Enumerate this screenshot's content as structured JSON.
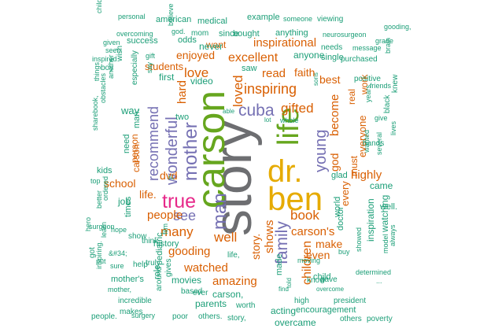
{
  "colors": {
    "gray": "#6d6e71",
    "yellow": "#e6ab02",
    "green": "#66a61e",
    "pink": "#e7298a",
    "purple": "#7570b3",
    "orange": "#d95f02",
    "teal": "#1b9e77"
  },
  "words": [
    {
      "text": "story",
      "color": "gray"
    },
    {
      "text": "dr.",
      "color": "yellow"
    },
    {
      "text": "ben",
      "color": "yellow"
    },
    {
      "text": "carson",
      "color": "green"
    },
    {
      "text": "life",
      "color": "green"
    },
    {
      "text": "true",
      "color": "pink"
    },
    {
      "text": "man",
      "color": "purple"
    },
    {
      "text": "mother",
      "color": "purple"
    },
    {
      "text": "wonderful",
      "color": "purple"
    },
    {
      "text": "cuba",
      "color": "purple"
    },
    {
      "text": "see",
      "color": "purple"
    },
    {
      "text": "young",
      "color": "purple"
    },
    {
      "text": "recommend",
      "color": "purple"
    },
    {
      "text": "family",
      "color": "purple"
    },
    {
      "text": "inspiring",
      "color": "orange"
    },
    {
      "text": "love",
      "color": "orange"
    },
    {
      "text": "loved",
      "color": "orange"
    },
    {
      "text": "gifted",
      "color": "orange"
    },
    {
      "text": "read",
      "color": "orange"
    },
    {
      "text": "faith",
      "color": "orange"
    },
    {
      "text": "excellent",
      "color": "orange"
    },
    {
      "text": "inspirational",
      "color": "orange"
    },
    {
      "text": "enjoyed",
      "color": "orange"
    },
    {
      "text": "hard",
      "color": "orange"
    },
    {
      "text": "god",
      "color": "orange"
    },
    {
      "text": "become",
      "color": "orange"
    },
    {
      "text": "best",
      "color": "orange"
    },
    {
      "text": "highly",
      "color": "orange"
    },
    {
      "text": "book",
      "color": "orange"
    },
    {
      "text": "carson's",
      "color": "orange"
    },
    {
      "text": "make",
      "color": "orange"
    },
    {
      "text": "even",
      "color": "orange"
    },
    {
      "text": "children",
      "color": "orange"
    },
    {
      "text": "shows",
      "color": "orange"
    },
    {
      "text": "story.",
      "color": "orange"
    },
    {
      "text": "well",
      "color": "orange"
    },
    {
      "text": "many",
      "color": "orange"
    },
    {
      "text": "people",
      "color": "orange"
    },
    {
      "text": "gooding",
      "color": "orange"
    },
    {
      "text": "watched",
      "color": "orange"
    },
    {
      "text": "amazing",
      "color": "orange"
    },
    {
      "text": "school",
      "color": "orange"
    },
    {
      "text": "life.",
      "color": "orange"
    },
    {
      "text": "students",
      "color": "orange"
    },
    {
      "text": "want",
      "color": "orange"
    },
    {
      "text": "every",
      "color": "orange"
    },
    {
      "text": "everyone",
      "color": "orange"
    },
    {
      "text": "must",
      "color": "orange"
    },
    {
      "text": "real",
      "color": "orange"
    },
    {
      "text": "work",
      "color": "orange"
    },
    {
      "text": "dvd",
      "color": "orange"
    },
    {
      "text": "carson.",
      "color": "orange"
    },
    {
      "text": "person",
      "color": "orange"
    },
    {
      "text": "way",
      "color": "teal"
    },
    {
      "text": "first",
      "color": "teal"
    },
    {
      "text": "video",
      "color": "teal"
    },
    {
      "text": "anyone",
      "color": "teal"
    },
    {
      "text": "saw",
      "color": "teal"
    },
    {
      "text": "two",
      "color": "teal"
    },
    {
      "text": "need",
      "color": "teal"
    },
    {
      "text": "man.",
      "color": "teal"
    },
    {
      "text": "job",
      "color": "teal"
    },
    {
      "text": "kids",
      "color": "teal"
    },
    {
      "text": "times",
      "color": "teal"
    },
    {
      "text": "world",
      "color": "teal"
    },
    {
      "text": "doctor",
      "color": "teal"
    },
    {
      "text": "inspiration",
      "color": "teal"
    },
    {
      "text": "watching",
      "color": "teal"
    },
    {
      "text": "came",
      "color": "teal"
    },
    {
      "text": "glad",
      "color": "teal"
    },
    {
      "text": "well.",
      "color": "teal"
    },
    {
      "text": "made",
      "color": "teal"
    },
    {
      "text": "child",
      "color": "teal"
    },
    {
      "text": "high",
      "color": "teal"
    },
    {
      "text": "president",
      "color": "teal"
    },
    {
      "text": "know",
      "color": "teal"
    },
    {
      "text": "acting",
      "color": "teal"
    },
    {
      "text": "overcame",
      "color": "teal"
    },
    {
      "text": "worth",
      "color": "teal"
    },
    {
      "text": "carson,",
      "color": "teal"
    },
    {
      "text": "parents",
      "color": "teal"
    },
    {
      "text": "movies",
      "color": "teal"
    },
    {
      "text": "ever",
      "color": "teal"
    },
    {
      "text": "role",
      "color": "teal"
    },
    {
      "text": "mother's",
      "color": "teal"
    },
    {
      "text": "sure",
      "color": "teal"
    },
    {
      "text": "incredible",
      "color": "teal"
    },
    {
      "text": "makes",
      "color": "teal"
    },
    {
      "text": "mother,",
      "color": "teal"
    },
    {
      "text": "inspiring.",
      "color": "teal"
    },
    {
      "text": "people.",
      "color": "teal"
    },
    {
      "text": "surgery",
      "color": "teal"
    },
    {
      "text": "poor",
      "color": "teal"
    },
    {
      "text": "others.",
      "color": "teal"
    },
    {
      "text": "story,",
      "color": "teal"
    },
    {
      "text": "encouragement",
      "color": "teal"
    },
    {
      "text": "others",
      "color": "teal"
    },
    {
      "text": "poverty",
      "color": "teal"
    },
    {
      "text": "personal",
      "color": "teal"
    },
    {
      "text": "american",
      "color": "teal"
    },
    {
      "text": "medical",
      "color": "teal"
    },
    {
      "text": "example",
      "color": "teal"
    },
    {
      "text": "someone",
      "color": "teal"
    },
    {
      "text": "viewing",
      "color": "teal"
    },
    {
      "text": "god.",
      "color": "teal"
    },
    {
      "text": "mom",
      "color": "teal"
    },
    {
      "text": "since",
      "color": "teal"
    },
    {
      "text": "bought",
      "color": "teal"
    },
    {
      "text": "anything",
      "color": "teal"
    },
    {
      "text": "neurosurgeon",
      "color": "teal"
    },
    {
      "text": "overcoming",
      "color": "teal"
    },
    {
      "text": "success",
      "color": "teal"
    },
    {
      "text": "odds",
      "color": "teal"
    },
    {
      "text": "never",
      "color": "teal"
    },
    {
      "text": "needs",
      "color": "teal"
    },
    {
      "text": "message",
      "color": "teal"
    },
    {
      "text": "purchased",
      "color": "teal"
    },
    {
      "text": "single",
      "color": "teal"
    },
    {
      "text": "positive",
      "color": "teal"
    },
    {
      "text": "friends",
      "color": "teal"
    },
    {
      "text": "grade",
      "color": "teal"
    },
    {
      "text": "gooding,",
      "color": "teal"
    },
    {
      "text": "brain",
      "color": "teal"
    },
    {
      "text": "children.",
      "color": "teal"
    },
    {
      "text": "given",
      "color": "teal"
    },
    {
      "text": "seen",
      "color": "teal"
    },
    {
      "text": "inspired",
      "color": "teal"
    },
    {
      "text": "boy",
      "color": "teal"
    },
    {
      "text": "wish",
      "color": "teal"
    },
    {
      "text": "gift",
      "color": "teal"
    },
    {
      "text": "believe",
      "color": "teal"
    },
    {
      "text": "say",
      "color": "teal"
    },
    {
      "text": "especially",
      "color": "teal"
    },
    {
      "text": "another",
      "color": "teal"
    },
    {
      "text": "things",
      "color": "teal"
    },
    {
      "text": "obstacles",
      "color": "teal"
    },
    {
      "text": "sharebook,",
      "color": "teal"
    },
    {
      "text": "top",
      "color": "teal"
    },
    {
      "text": "lot",
      "color": "teal"
    },
    {
      "text": "whole",
      "color": "teal"
    },
    {
      "text": "able",
      "color": "teal"
    },
    {
      "text": "sons",
      "color": "teal"
    },
    {
      "text": "years",
      "color": "teal"
    },
    {
      "text": "give",
      "color": "teal"
    },
    {
      "text": "black",
      "color": "teal"
    },
    {
      "text": "knew",
      "color": "teal"
    },
    {
      "text": "hands",
      "color": "teal"
    },
    {
      "text": "wanted",
      "color": "teal"
    },
    {
      "text": "several",
      "color": "teal"
    },
    {
      "text": "lives",
      "color": "teal"
    },
    {
      "text": "jr.",
      "color": "teal"
    },
    {
      "text": "film",
      "color": "teal"
    },
    {
      "text": "surgeon",
      "color": "teal"
    },
    {
      "text": "ordered",
      "color": "teal"
    },
    {
      "text": "better",
      "color": "teal"
    },
    {
      "text": "hero",
      "color": "teal"
    },
    {
      "text": "hope",
      "color": "teal"
    },
    {
      "text": "truly",
      "color": "teal"
    },
    {
      "text": "show",
      "color": "teal"
    },
    {
      "text": "think",
      "color": "teal"
    },
    {
      "text": "history",
      "color": "teal"
    },
    {
      "text": "pediatric",
      "color": "teal"
    },
    {
      "text": "around",
      "color": "teal"
    },
    {
      "text": "gives",
      "color": "teal"
    },
    {
      "text": "learn",
      "color": "teal"
    },
    {
      "text": "got",
      "color": "teal"
    },
    {
      "text": "&#34;",
      "color": "teal"
    },
    {
      "text": "help",
      "color": "teal"
    },
    {
      "text": "put",
      "color": "teal"
    },
    {
      "text": "based",
      "color": "teal"
    },
    {
      "text": "life,",
      "color": "teal"
    },
    {
      "text": "told",
      "color": "teal"
    },
    {
      "text": "find",
      "color": "teal"
    },
    {
      "text": "moving",
      "color": "teal"
    },
    {
      "text": "gave",
      "color": "teal"
    },
    {
      "text": "overcome",
      "color": "teal"
    },
    {
      "text": "buy",
      "color": "teal"
    },
    {
      "text": "showed",
      "color": "teal"
    },
    {
      "text": "determined",
      "color": "teal"
    },
    {
      "text": "model",
      "color": "teal"
    },
    {
      "text": "always",
      "color": "teal"
    },
    {
      "text": "...",
      "color": "teal"
    }
  ]
}
